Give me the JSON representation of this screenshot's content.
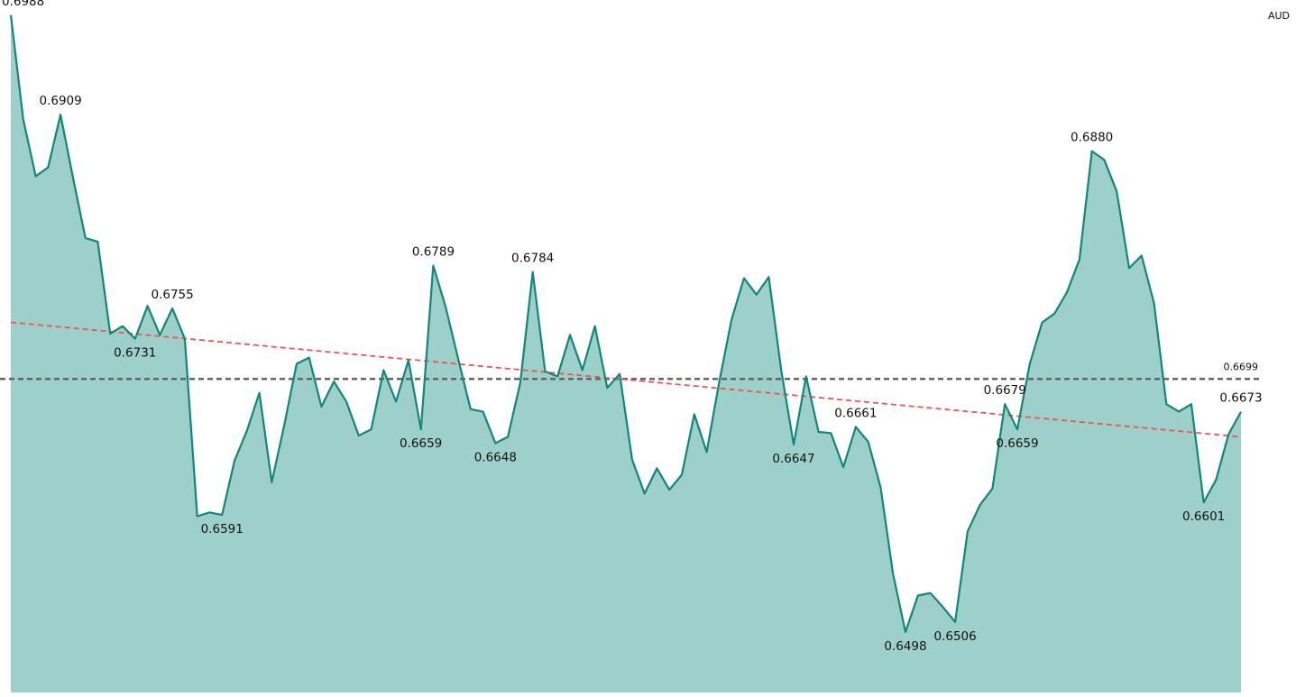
{
  "chart_data": {
    "type": "area",
    "unit_label": "AUD",
    "color": "#11877a",
    "fill": "#9dd0cb",
    "ylim": [
      0.645,
      0.7
    ],
    "values": [
      0.6988,
      0.6905,
      0.686,
      0.6867,
      0.6909,
      0.6859,
      0.6811,
      0.6808,
      0.6735,
      0.6741,
      0.6731,
      0.6757,
      0.6734,
      0.6755,
      0.6731,
      0.659,
      0.6593,
      0.6591,
      0.6634,
      0.6658,
      0.6688,
      0.6617,
      0.6662,
      0.6711,
      0.6716,
      0.6677,
      0.6697,
      0.6681,
      0.6654,
      0.6659,
      0.6706,
      0.6681,
      0.6714,
      0.6659,
      0.6789,
      0.6756,
      0.6715,
      0.6675,
      0.6673,
      0.6648,
      0.6653,
      0.6696,
      0.6784,
      0.6705,
      0.6701,
      0.6734,
      0.6706,
      0.6741,
      0.6692,
      0.6703,
      0.6635,
      0.6608,
      0.6628,
      0.6611,
      0.6623,
      0.6671,
      0.6641,
      0.6696,
      0.6746,
      0.6779,
      0.6766,
      0.678,
      0.6706,
      0.6647,
      0.6701,
      0.6657,
      0.6656,
      0.6629,
      0.6661,
      0.6649,
      0.6613,
      0.6544,
      0.6498,
      0.6527,
      0.6529,
      0.6518,
      0.6506,
      0.6578,
      0.6599,
      0.6612,
      0.6679,
      0.6659,
      0.6711,
      0.6744,
      0.6751,
      0.6768,
      0.6794,
      0.688,
      0.6873,
      0.6848,
      0.6787,
      0.6797,
      0.6759,
      0.6679,
      0.6673,
      0.6679,
      0.6601,
      0.6619,
      0.6655,
      0.6673
    ],
    "value_labels": [
      "0.6988",
      null,
      null,
      null,
      "0.6909",
      null,
      null,
      null,
      null,
      null,
      "0.6731",
      null,
      null,
      "0.6755",
      null,
      null,
      null,
      "0.6591",
      null,
      null,
      null,
      null,
      null,
      null,
      null,
      null,
      null,
      null,
      null,
      null,
      null,
      null,
      null,
      "0.6659",
      "0.6789",
      null,
      null,
      null,
      null,
      "0.6648",
      null,
      null,
      "0.6784",
      null,
      null,
      null,
      null,
      null,
      null,
      null,
      null,
      null,
      null,
      null,
      null,
      null,
      null,
      null,
      null,
      null,
      null,
      null,
      null,
      "0.6647",
      null,
      null,
      null,
      null,
      "0.6661",
      null,
      null,
      null,
      "0.6498",
      null,
      null,
      null,
      "0.6506",
      null,
      null,
      null,
      "0.6679",
      "0.6659",
      null,
      null,
      null,
      null,
      null,
      "0.6880",
      null,
      null,
      null,
      null,
      null,
      null,
      null,
      null,
      "0.6601",
      null,
      null,
      "0.6673"
    ],
    "average": {
      "value": 0.6699,
      "label": "0.6699",
      "color": "#666666"
    },
    "trend": {
      "start": 0.6744,
      "end": 0.6653,
      "color": "#f0544f"
    }
  }
}
